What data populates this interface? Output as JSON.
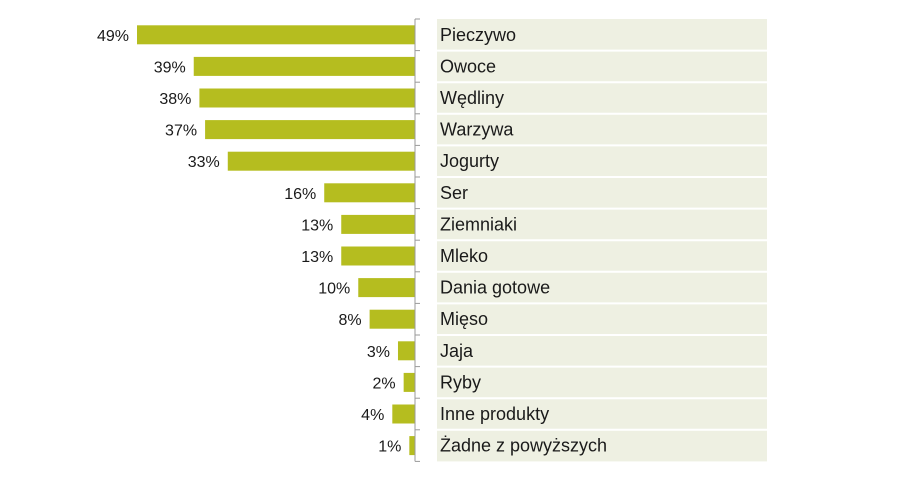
{
  "chart_data": {
    "type": "bar",
    "orientation": "horizontal",
    "bar_direction": "right-to-left",
    "bar_color": "#b5bd1f",
    "label_panel_color": "#eef0e2",
    "value_format": "percent",
    "categories": [
      "Pieczywo",
      "Owoce",
      "Wędliny",
      "Warzywa",
      "Jogurty",
      "Ser",
      "Ziemniaki",
      "Mleko",
      "Dania gotowe",
      "Mięso",
      "Jaja",
      "Ryby",
      "Inne produkty",
      "Żadne z powyższych"
    ],
    "values": [
      49,
      39,
      38,
      37,
      33,
      16,
      13,
      13,
      10,
      8,
      3,
      2,
      4,
      1
    ],
    "value_labels": [
      "49%",
      "39%",
      "38%",
      "37%",
      "33%",
      "16%",
      "13%",
      "13%",
      "10%",
      "8%",
      "3%",
      "2%",
      "4%",
      "1%"
    ],
    "xlim": [
      0,
      49
    ],
    "grid": false,
    "legend": "none"
  }
}
